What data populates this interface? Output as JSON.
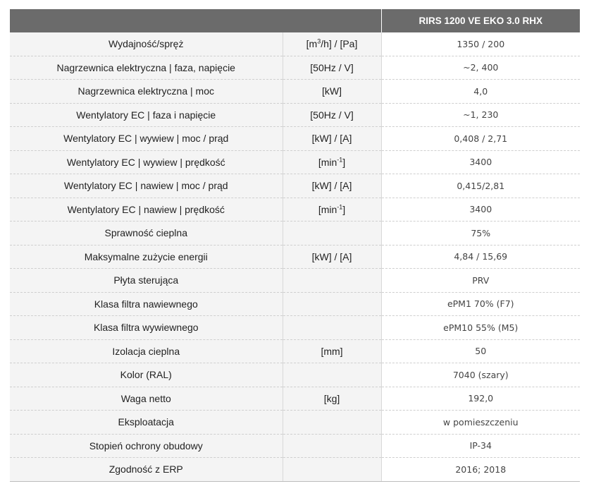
{
  "header": {
    "col1": "",
    "col2": "",
    "product": "RIRS 1200 VE EKO 3.0 RHX"
  },
  "rows": [
    {
      "param": "Wydajność/spręż",
      "unit_base": "[m",
      "unit_sup": "3",
      "unit_rest": "/h] / [Pa]",
      "value": "1350 / 200"
    },
    {
      "param": "Nagrzewnica elektryczna | faza, napięcie",
      "unit_base": "[50Hz / V]",
      "unit_sup": "",
      "unit_rest": "",
      "value": "~2, 400"
    },
    {
      "param": "Nagrzewnica elektryczna | moc",
      "unit_base": "[kW]",
      "unit_sup": "",
      "unit_rest": "",
      "value": "4,0"
    },
    {
      "param": "Wentylatory EC | faza i napięcie",
      "unit_base": "[50Hz / V]",
      "unit_sup": "",
      "unit_rest": "",
      "value": "~1, 230"
    },
    {
      "param": "Wentylatory EC | wywiew | moc / prąd",
      "unit_base": "[kW] / [A]",
      "unit_sup": "",
      "unit_rest": "",
      "value": "0,408 / 2,71"
    },
    {
      "param": "Wentylatory EC | wywiew | prędkość",
      "unit_base": "[min",
      "unit_sup": "-1",
      "unit_rest": "]",
      "value": "3400"
    },
    {
      "param": "Wentylatory EC | nawiew | moc / prąd",
      "unit_base": "[kW] / [A]",
      "unit_sup": "",
      "unit_rest": "",
      "value": "0,415/2,81"
    },
    {
      "param": "Wentylatory EC | nawiew | prędkość",
      "unit_base": "[min",
      "unit_sup": "-1",
      "unit_rest": "]",
      "value": "3400"
    },
    {
      "param": "Sprawność cieplna",
      "unit_base": "",
      "unit_sup": "",
      "unit_rest": "",
      "value": "75%"
    },
    {
      "param": "Maksymalne zużycie energii",
      "unit_base": "[kW] / [A]",
      "unit_sup": "",
      "unit_rest": "",
      "value": "4,84 / 15,69"
    },
    {
      "param": "Płyta sterująca",
      "unit_base": "",
      "unit_sup": "",
      "unit_rest": "",
      "value": "PRV"
    },
    {
      "param": "Klasa filtra nawiewnego",
      "unit_base": "",
      "unit_sup": "",
      "unit_rest": "",
      "value": "ePM1 70% (F7)"
    },
    {
      "param": "Klasa filtra wywiewnego",
      "unit_base": "",
      "unit_sup": "",
      "unit_rest": "",
      "value": "ePM10 55% (M5)"
    },
    {
      "param": "Izolacja cieplna",
      "unit_base": "[mm]",
      "unit_sup": "",
      "unit_rest": "",
      "value": "50"
    },
    {
      "param": "Kolor (RAL)",
      "unit_base": "",
      "unit_sup": "",
      "unit_rest": "",
      "value": "7040 (szary)"
    },
    {
      "param": "Waga netto",
      "unit_base": "[kg]",
      "unit_sup": "",
      "unit_rest": "",
      "value": "192,0"
    },
    {
      "param": "Eksploatacja",
      "unit_base": "",
      "unit_sup": "",
      "unit_rest": "",
      "value": "w pomieszczeniu"
    },
    {
      "param": "Stopień ochrony obudowy",
      "unit_base": "",
      "unit_sup": "",
      "unit_rest": "",
      "value": "IP-34"
    },
    {
      "param": "Zgodność z ERP",
      "unit_base": "",
      "unit_sup": "",
      "unit_rest": "",
      "value": "2016; 2018"
    }
  ],
  "colors": {
    "header_bg": "#6b6b6b",
    "header_text": "#ffffff",
    "label_bg": "#f4f4f4",
    "row_divider": "#cfcfcf"
  }
}
